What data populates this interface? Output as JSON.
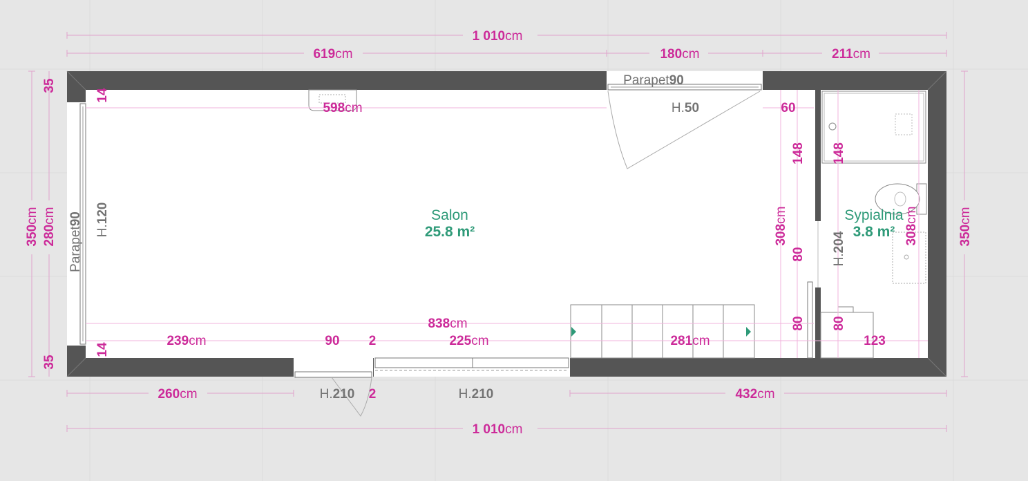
{
  "plan": {
    "dims": {
      "total_top": {
        "num": "1 010",
        "unit": "cm"
      },
      "top_left": {
        "num": "619",
        "unit": "cm"
      },
      "top_mid": {
        "num": "180",
        "unit": "cm"
      },
      "top_right": {
        "num": "211",
        "unit": "cm"
      },
      "inner_top": {
        "num": "598",
        "unit": "cm"
      },
      "inner_60": "60",
      "inner_148_a": "148",
      "inner_148_b": "148",
      "inner_308_a": {
        "num": "308",
        "unit": "cm"
      },
      "inner_308_b": {
        "num": "308",
        "unit": "cm"
      },
      "inner_80_a": "80",
      "inner_80_b": "80",
      "inner_80_c": "80",
      "inner_838": {
        "num": "838",
        "unit": "cm"
      },
      "inner_239": {
        "num": "239",
        "unit": "cm"
      },
      "inner_90": "90",
      "inner_2_a": "2",
      "inner_225": {
        "num": "225",
        "unit": "cm"
      },
      "inner_281": {
        "num": "281",
        "unit": "cm"
      },
      "inner_123": "123",
      "wall_14_top": "14",
      "wall_14_bot": "14",
      "left_35_top": "35",
      "left_35_bot": "35",
      "left_350": {
        "num": "350",
        "unit": "cm"
      },
      "left_280": {
        "num": "280",
        "unit": "cm"
      },
      "right_350": {
        "num": "350",
        "unit": "cm"
      },
      "bottom_260": {
        "num": "260",
        "unit": "cm"
      },
      "bottom_2": "2",
      "bottom_432": {
        "num": "432",
        "unit": "cm"
      },
      "total_bottom": {
        "num": "1 010",
        "unit": "cm"
      }
    },
    "openings": {
      "top_window": {
        "label": "Parapet",
        "value": "90"
      },
      "top_height": {
        "label": "H.",
        "value": "50"
      },
      "left_window": {
        "label": "Parapet",
        "value": "90"
      },
      "left_height": {
        "label": "H.",
        "value": "120"
      },
      "bath_door_height": {
        "label": "H.",
        "value": "204"
      },
      "front_door_height": {
        "label": "H.",
        "value": "210"
      },
      "slider_height": {
        "label": "H.",
        "value": "210"
      }
    },
    "rooms": [
      {
        "name": "Salon",
        "area": "25.8 m²"
      },
      {
        "name": "Sypialnia",
        "area": "3.8 m²"
      }
    ],
    "colors": {
      "background": "#e6e6e6",
      "wall": "#555555",
      "floor": "#ffffff",
      "dimension": "#cc2a99",
      "room_label": "#2e9a78",
      "stair_arrow": "#2e9a78"
    }
  }
}
